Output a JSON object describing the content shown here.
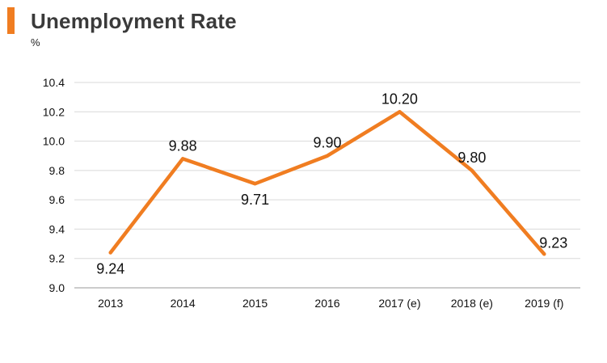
{
  "header": {
    "title": "Unemployment Rate",
    "unit": "%",
    "accent_color": "#f07d21"
  },
  "chart_data": {
    "type": "line",
    "title": "Unemployment Rate",
    "ylabel": "%",
    "xlabel": "",
    "categories": [
      "2013",
      "2014",
      "2015",
      "2016",
      "2017 (e)",
      "2018 (e)",
      "2019 (f)"
    ],
    "series": [
      {
        "values": [
          9.24,
          9.88,
          9.71,
          9.9,
          10.2,
          9.8,
          9.23
        ],
        "labels": [
          "9.24",
          "9.88",
          "9.71",
          "9.90",
          "10.20",
          "9.80",
          "9.23"
        ],
        "color": "#f07d21"
      }
    ],
    "ylim": [
      9.0,
      10.4
    ],
    "yticks": [
      "9.0",
      "9.2",
      "9.4",
      "9.6",
      "9.8",
      "10.0",
      "10.2",
      "10.4"
    ],
    "grid": true,
    "legend": "none"
  }
}
